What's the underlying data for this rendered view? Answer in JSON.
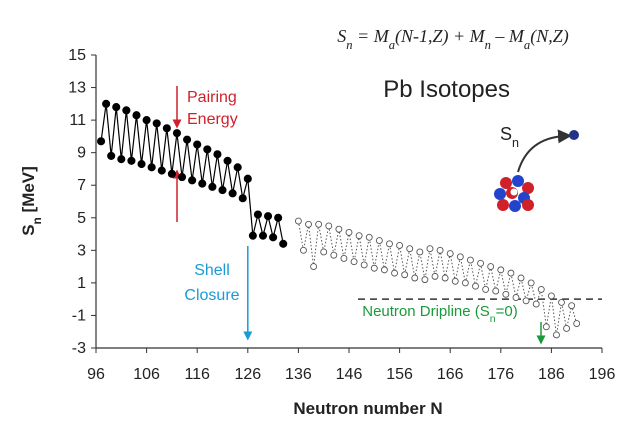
{
  "chart_data": {
    "type": "scatter",
    "formula": [
      {
        "text": "S"
      },
      {
        "text": "n",
        "sub": true
      },
      {
        "text": " = M"
      },
      {
        "text": "a",
        "sub": true
      },
      {
        "text": "(N-1,Z) + M"
      },
      {
        "text": "n",
        "sub": true
      },
      {
        "text": " – M"
      },
      {
        "text": "a",
        "sub": true
      },
      {
        "text": "(N,Z)"
      }
    ],
    "title": "Pb Isotopes",
    "xlabel": "Neutron number N",
    "ylabel": [
      {
        "text": "S"
      },
      {
        "text": "n",
        "sub": true
      },
      {
        "text": " [MeV]"
      }
    ],
    "xlim": [
      96,
      196
    ],
    "xticks": [
      96,
      106,
      116,
      126,
      136,
      146,
      156,
      166,
      176,
      186,
      196
    ],
    "ylim": [
      -3,
      15
    ],
    "yticks": [
      -3,
      -1,
      1,
      3,
      5,
      7,
      9,
      11,
      13,
      15
    ],
    "annotations": {
      "pairing": [
        "Pairing",
        "Energy"
      ],
      "shell": [
        "Shell",
        "Closure"
      ],
      "shell_n": 126,
      "dripline": [
        {
          "text": "Neutron Dripline (S"
        },
        {
          "text": "n",
          "sub": true
        },
        {
          "text": "=0)"
        }
      ],
      "dripline_y": 0,
      "sn": [
        {
          "text": "S"
        },
        {
          "text": "n",
          "sub": true
        }
      ]
    },
    "series": [
      {
        "color": "#000000",
        "marker": "filled",
        "line": "solid",
        "x": [
          97,
          98,
          99,
          100,
          101,
          102,
          103,
          104,
          105,
          106,
          107,
          108,
          109,
          110,
          111,
          112,
          113,
          114,
          115,
          116,
          117,
          118,
          119,
          120,
          121,
          122,
          123,
          124,
          125,
          126,
          127,
          128,
          129,
          130,
          131,
          132,
          133
        ],
        "values": [
          9.7,
          12.0,
          8.8,
          11.8,
          8.6,
          11.6,
          8.5,
          11.3,
          8.3,
          11.0,
          8.1,
          10.8,
          7.9,
          10.5,
          7.7,
          10.2,
          7.5,
          9.8,
          7.3,
          9.5,
          7.1,
          9.2,
          6.9,
          8.9,
          6.7,
          8.5,
          6.5,
          8.1,
          6.2,
          7.4,
          3.9,
          5.2,
          3.9,
          5.1,
          3.8,
          5.0,
          3.4
        ]
      },
      {
        "color": "#555555",
        "marker": "open",
        "line": "dotted",
        "x": [
          136,
          137,
          138,
          139,
          140,
          141,
          142,
          143,
          144,
          145,
          146,
          147,
          148,
          149,
          150,
          151,
          152,
          153,
          154,
          155,
          156,
          157,
          158,
          159,
          160,
          161,
          162,
          163,
          164,
          165,
          166,
          167,
          168,
          169,
          170,
          171,
          172,
          173,
          174,
          175,
          176,
          177,
          178,
          179,
          180,
          181,
          182,
          183,
          184,
          185,
          186,
          187,
          188,
          189,
          190,
          191
        ],
        "values": [
          4.8,
          3.0,
          4.6,
          2.0,
          4.6,
          2.9,
          4.5,
          2.7,
          4.3,
          2.5,
          4.1,
          2.3,
          3.9,
          2.1,
          3.8,
          1.9,
          3.6,
          1.8,
          3.4,
          1.6,
          3.3,
          1.5,
          3.1,
          1.3,
          2.9,
          1.2,
          3.1,
          1.4,
          3.0,
          1.3,
          2.8,
          1.1,
          2.6,
          1.0,
          2.4,
          0.8,
          2.2,
          0.6,
          2.0,
          0.5,
          1.8,
          0.3,
          1.6,
          0.1,
          1.3,
          -0.1,
          1.0,
          -0.3,
          0.6,
          -1.7,
          0.2,
          -2.2,
          -0.2,
          -1.8,
          -0.4,
          -1.5
        ]
      }
    ]
  }
}
